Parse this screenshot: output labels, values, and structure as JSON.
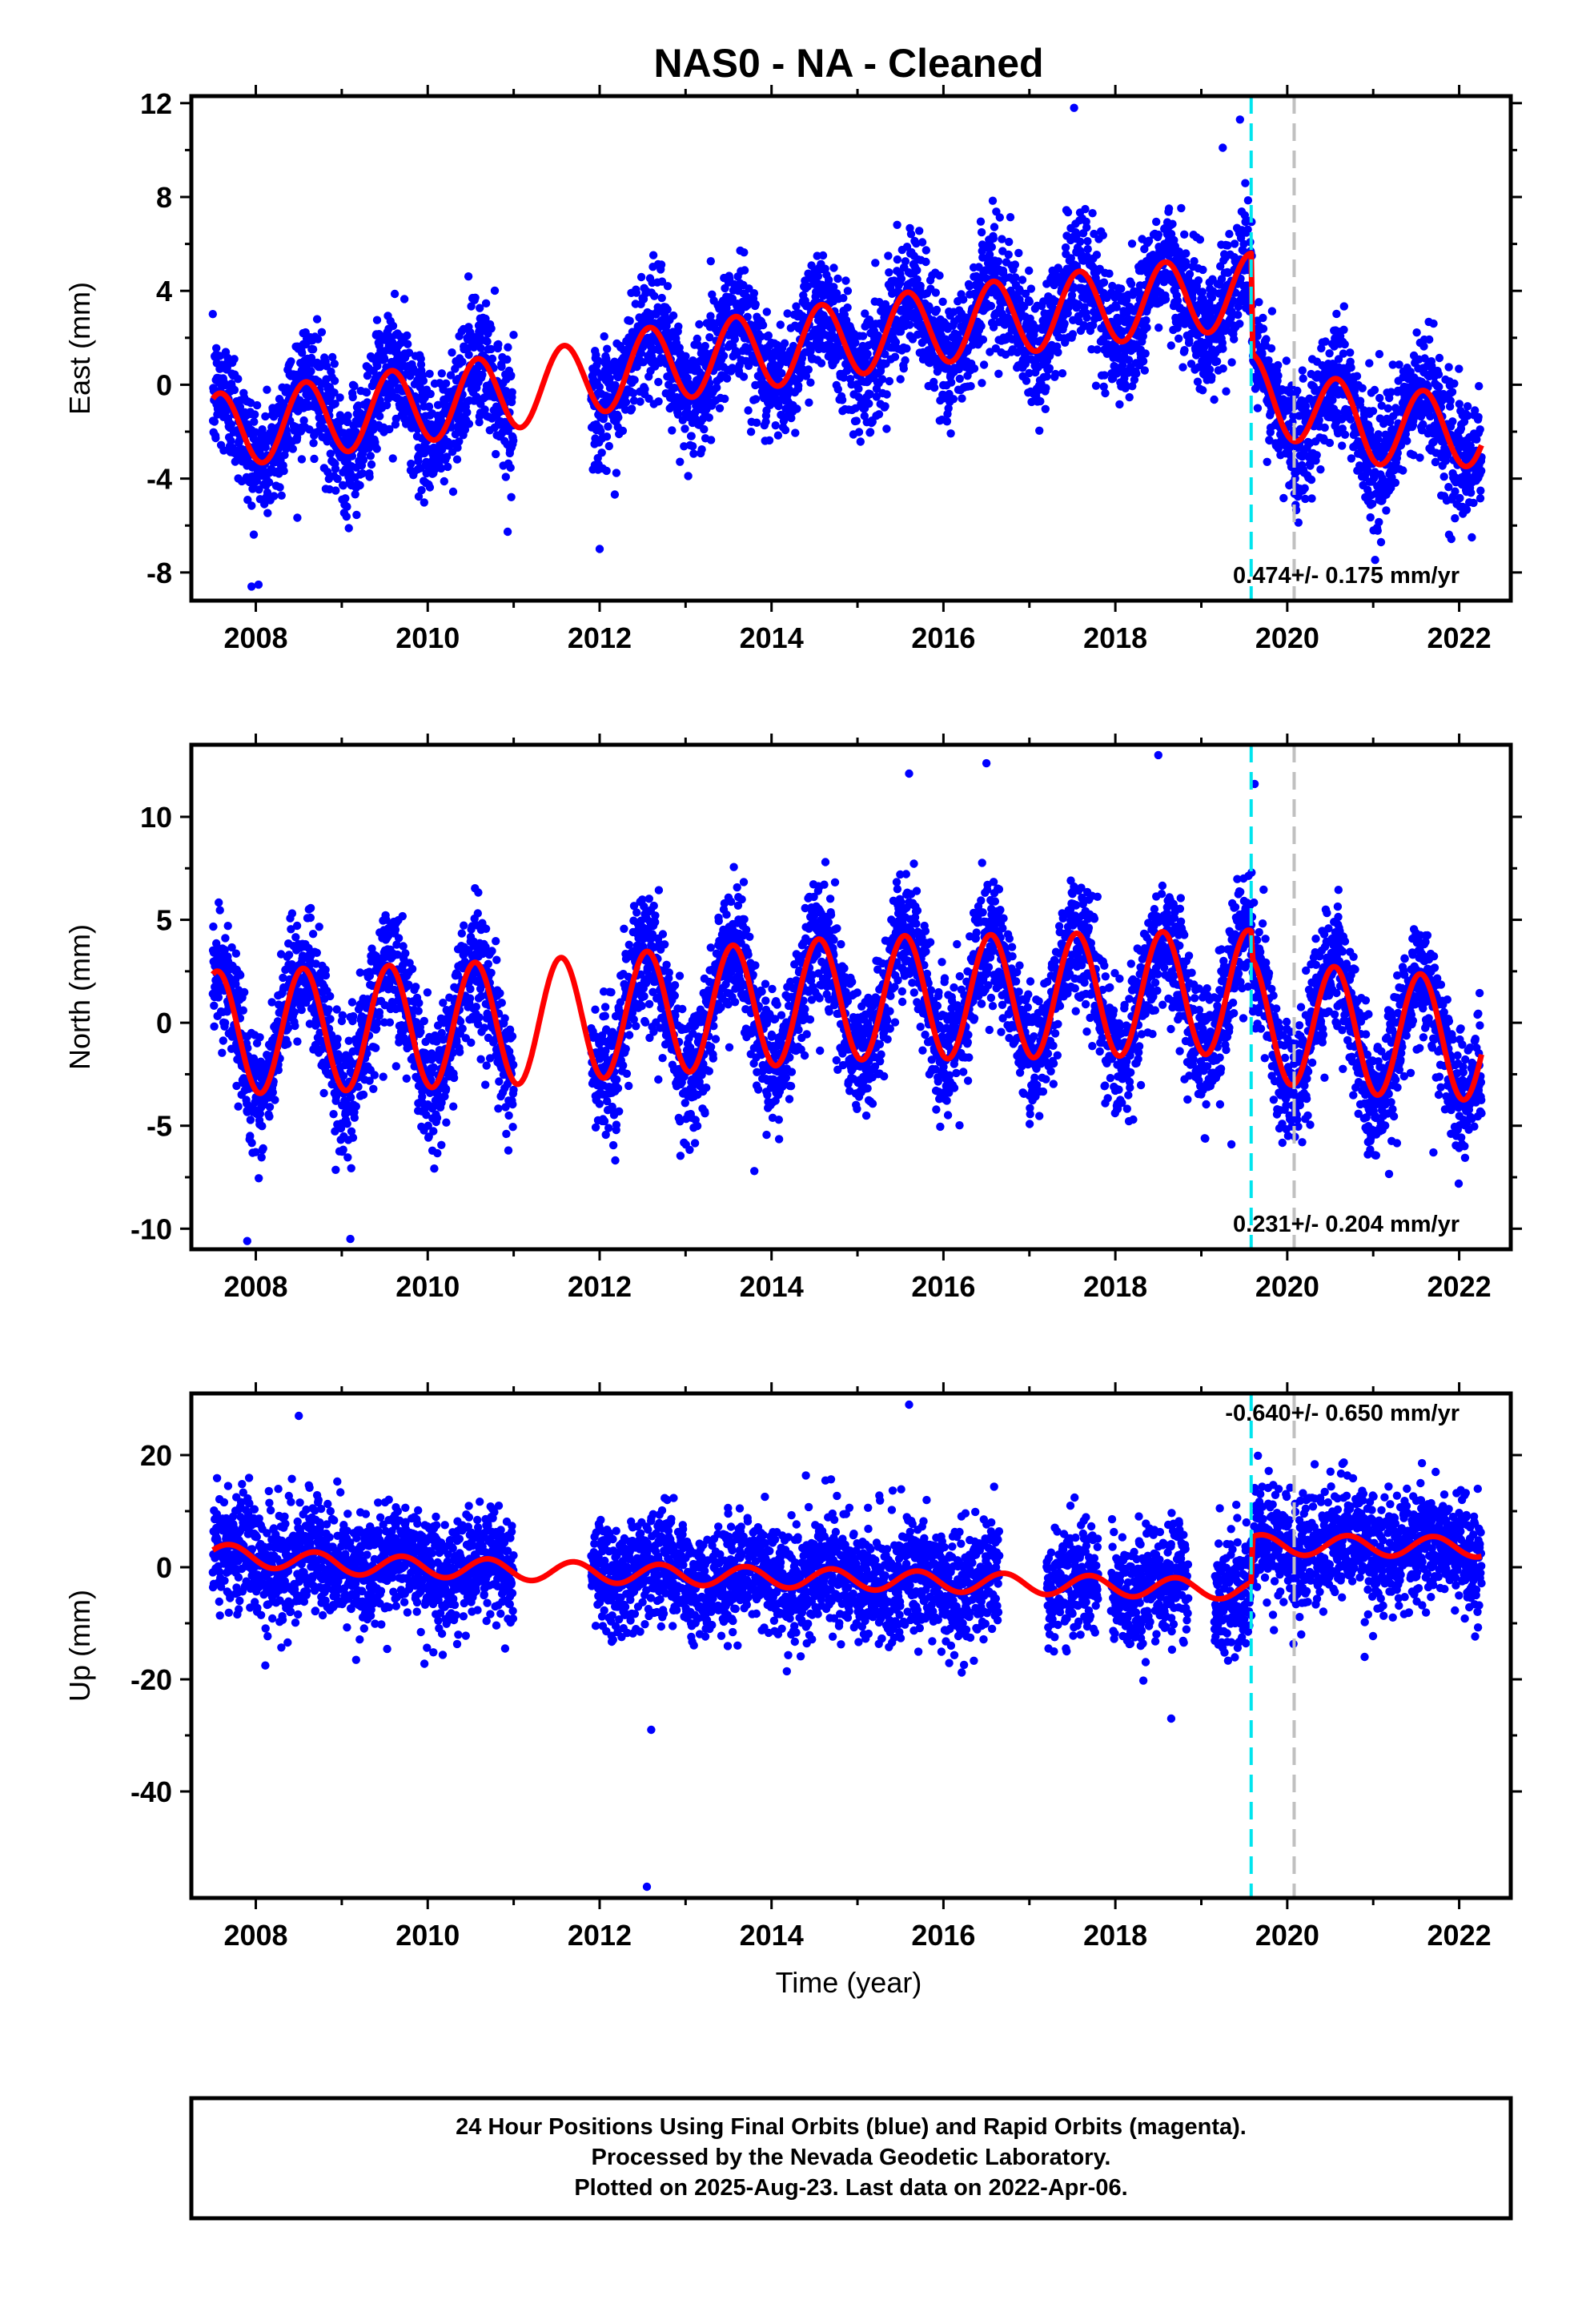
{
  "colors": {
    "points": "#0000ff",
    "model": "#ff0000",
    "event_cyan": "#00e5ee",
    "event_gray": "#c0c0c0",
    "frame": "#000000"
  },
  "footer": {
    "line1": "24 Hour Positions Using Final Orbits (blue) and Rapid Orbits (magenta).",
    "line2": "Processed by the Nevada Geodetic Laboratory.",
    "line3": "Plotted on 2025-Aug-23. Last data on 2022-Apr-06."
  },
  "chart_data": [
    {
      "type": "scatter",
      "id": "east",
      "title": "NAS0  - NA - Cleaned",
      "xlabel": "",
      "ylabel": "East (mm)",
      "xlim": [
        2007.25,
        2022.6
      ],
      "ylim": [
        -9.2,
        12.3
      ],
      "xticks": [
        "2008",
        "2010",
        "2012",
        "2014",
        "2016",
        "2018",
        "2020",
        "2022"
      ],
      "yticks": [
        "-8",
        "-4",
        "0",
        "4",
        "8",
        "12"
      ],
      "rate_label": "0.474+/- 0.175 mm/yr",
      "event_lines": [
        {
          "x": 2019.58,
          "style": "cyan-dashed"
        },
        {
          "x": 2020.08,
          "style": "gray-dashed"
        }
      ],
      "data_span": [
        2007.5,
        2022.26
      ],
      "gaps": [
        [
          2011.0,
          2011.9
        ]
      ],
      "seasonal_amp": 1.6,
      "seasonal_phase": 0.58,
      "scatter_sd": 1.3,
      "trend_nodes": [
        [
          2007.5,
          -2.0
        ],
        [
          2010.0,
          -0.8
        ],
        [
          2011.5,
          0.0
        ],
        [
          2012.5,
          0.8
        ],
        [
          2014.0,
          1.5
        ],
        [
          2015.5,
          2.3
        ],
        [
          2017.0,
          3.0
        ],
        [
          2018.5,
          3.6
        ],
        [
          2019.58,
          4.0
        ],
        [
          2019.6,
          -0.3
        ],
        [
          2021.0,
          -1.8
        ],
        [
          2022.3,
          -1.9
        ]
      ],
      "extreme_points": [
        [
          2017.52,
          11.8
        ],
        [
          2019.45,
          11.3
        ],
        [
          2007.95,
          -8.6
        ],
        [
          2012.0,
          -7.0
        ],
        [
          2019.25,
          10.1
        ]
      ]
    },
    {
      "type": "scatter",
      "id": "north",
      "title": "",
      "xlabel": "",
      "ylabel": "North (mm)",
      "xlim": [
        2007.25,
        2022.6
      ],
      "ylim": [
        -11.0,
        13.5
      ],
      "xticks": [
        "2008",
        "2010",
        "2012",
        "2014",
        "2016",
        "2018",
        "2020",
        "2022"
      ],
      "yticks": [
        "-10",
        "-5",
        "0",
        "5",
        "10"
      ],
      "rate_label": "0.231+/- 0.204 mm/yr",
      "event_lines": [
        {
          "x": 2019.58,
          "style": "cyan-dashed"
        },
        {
          "x": 2020.08,
          "style": "gray-dashed"
        }
      ],
      "data_span": [
        2007.5,
        2022.26
      ],
      "gaps": [
        [
          2011.0,
          2011.9
        ]
      ],
      "seasonal_amp": 3.0,
      "seasonal_phase": 0.55,
      "scatter_sd": 1.5,
      "trend_nodes": [
        [
          2007.5,
          -0.5
        ],
        [
          2009.0,
          -0.3
        ],
        [
          2011.0,
          0.0
        ],
        [
          2013.0,
          0.6
        ],
        [
          2015.0,
          1.2
        ],
        [
          2017.0,
          1.3
        ],
        [
          2019.58,
          1.5
        ],
        [
          2019.6,
          0.2
        ],
        [
          2021.0,
          -0.5
        ],
        [
          2022.3,
          -0.8
        ]
      ],
      "extreme_points": [
        [
          2018.5,
          13.0
        ],
        [
          2016.5,
          12.6
        ],
        [
          2015.6,
          12.1
        ],
        [
          2019.62,
          11.6
        ],
        [
          2007.9,
          -10.6
        ],
        [
          2009.1,
          -10.5
        ],
        [
          2013.8,
          -7.2
        ],
        [
          2019.35,
          -5.9
        ],
        [
          2021.7,
          -6.3
        ]
      ]
    },
    {
      "type": "scatter",
      "id": "up",
      "title": "",
      "xlabel": "Time (year)",
      "ylabel": "Up (mm)",
      "xlim": [
        2007.25,
        2022.6
      ],
      "ylim": [
        -59.0,
        31.0
      ],
      "xticks": [
        "2008",
        "2010",
        "2012",
        "2014",
        "2016",
        "2018",
        "2020",
        "2022"
      ],
      "yticks": [
        "-40",
        "-20",
        "0",
        "20"
      ],
      "rate_label": "-0.640+/- 0.650 mm/yr",
      "event_lines": [
        {
          "x": 2019.58,
          "style": "cyan-dashed"
        },
        {
          "x": 2020.08,
          "style": "gray-dashed"
        }
      ],
      "data_span": [
        2007.5,
        2022.26
      ],
      "gaps": [
        [
          2011.0,
          2011.9
        ],
        [
          2016.65,
          2017.2
        ],
        [
          2017.8,
          2017.95
        ],
        [
          2018.85,
          2019.15
        ]
      ],
      "seasonal_amp": 1.8,
      "seasonal_phase": 0.7,
      "scatter_sd": 5.0,
      "trend_nodes": [
        [
          2007.5,
          2.5
        ],
        [
          2009.0,
          0.5
        ],
        [
          2010.5,
          -0.2
        ],
        [
          2012.0,
          -1.0
        ],
        [
          2014.0,
          -1.8
        ],
        [
          2016.0,
          -2.6
        ],
        [
          2017.5,
          -3.2
        ],
        [
          2019.58,
          -4.0
        ],
        [
          2019.6,
          4.0
        ],
        [
          2021.0,
          3.8
        ],
        [
          2022.3,
          3.6
        ]
      ],
      "extreme_points": [
        [
          2012.55,
          -57.0
        ],
        [
          2015.6,
          29.0
        ],
        [
          2008.5,
          27.0
        ],
        [
          2012.6,
          -29.0
        ],
        [
          2018.65,
          -27.0
        ],
        [
          2020.9,
          -16.0
        ]
      ]
    }
  ]
}
